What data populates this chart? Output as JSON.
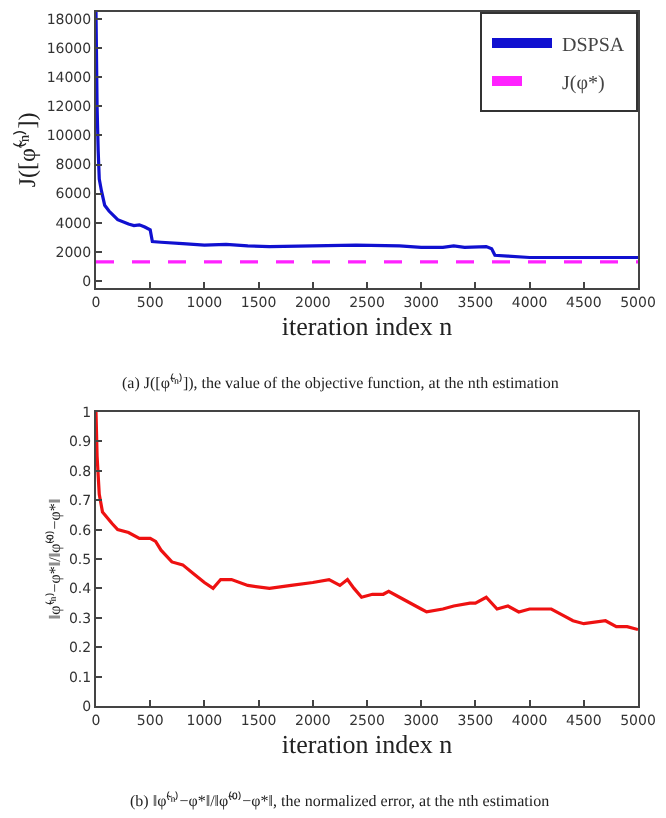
{
  "chart_data": [
    {
      "type": "line",
      "xlabel": "iteration index n",
      "ylabel": "J([φ̃⁽ⁿ⁾])",
      "annotations": [
        "(a) J([φ̃⁽ⁿ⁾]), the value of the objective function, at the nth estimation"
      ],
      "xlim": [
        0,
        5000
      ],
      "xticks": [
        0,
        500,
        1000,
        1500,
        2000,
        2500,
        3000,
        3500,
        4000,
        4500,
        5000
      ],
      "ylim": [
        -500,
        18500
      ],
      "yticks": [
        0,
        2000,
        4000,
        6000,
        8000,
        10000,
        12000,
        14000,
        16000,
        18000
      ],
      "legend": "top right",
      "series": [
        {
          "name": "DSPSA",
          "color": "#1010d0",
          "line_style": "solid",
          "x": [
            0,
            10,
            20,
            30,
            50,
            80,
            120,
            200,
            300,
            350,
            400,
            450,
            500,
            520,
            600,
            800,
            1000,
            1200,
            1400,
            1600,
            2000,
            2400,
            2800,
            3000,
            3200,
            3300,
            3400,
            3600,
            3650,
            3680,
            3800,
            4000,
            4500,
            5000
          ],
          "values": [
            18500,
            12000,
            9000,
            7000,
            6200,
            5200,
            4800,
            4200,
            3900,
            3800,
            3850,
            3700,
            3500,
            2700,
            2650,
            2550,
            2450,
            2500,
            2400,
            2350,
            2400,
            2450,
            2400,
            2300,
            2300,
            2400,
            2300,
            2350,
            2200,
            1750,
            1700,
            1600,
            1600,
            1600
          ]
        },
        {
          "name": "J(φ*)",
          "color": "#ff22ff",
          "line_style": "dashed",
          "x": [
            0,
            5000
          ],
          "values": [
            1300,
            1300
          ]
        }
      ]
    },
    {
      "type": "line",
      "xlabel": "iteration index n",
      "ylabel": "‖φ̃⁽ⁿ⁾−φ*‖/‖φ̃⁽⁰⁾−φ*‖",
      "annotations": [
        "(b) ‖φ̃⁽ⁿ⁾−φ*‖/‖φ̃⁽⁰⁾−φ*‖, the normalized error, at the nth estimation"
      ],
      "xlim": [
        0,
        5000
      ],
      "xticks": [
        0,
        500,
        1000,
        1500,
        2000,
        2500,
        3000,
        3500,
        4000,
        4500,
        5000
      ],
      "ylim": [
        0,
        1
      ],
      "yticks": [
        0,
        0.1,
        0.2,
        0.3,
        0.4,
        0.5,
        0.6,
        0.7,
        0.8,
        0.9,
        1
      ],
      "series": [
        {
          "color": "#ee1111",
          "line_style": "solid",
          "x": [
            0,
            10,
            30,
            60,
            150,
            200,
            300,
            400,
            500,
            550,
            600,
            700,
            800,
            900,
            1000,
            1080,
            1150,
            1250,
            1400,
            1600,
            1800,
            2000,
            2150,
            2250,
            2320,
            2380,
            2450,
            2550,
            2650,
            2700,
            2800,
            3000,
            3050,
            3200,
            3300,
            3450,
            3500,
            3600,
            3700,
            3800,
            3900,
            4000,
            4200,
            4300,
            4400,
            4500,
            4700,
            4800,
            4900,
            5000
          ],
          "values": [
            1.0,
            0.85,
            0.72,
            0.66,
            0.62,
            0.6,
            0.59,
            0.57,
            0.57,
            0.56,
            0.53,
            0.49,
            0.48,
            0.45,
            0.42,
            0.4,
            0.43,
            0.43,
            0.41,
            0.4,
            0.41,
            0.42,
            0.43,
            0.41,
            0.43,
            0.4,
            0.37,
            0.38,
            0.38,
            0.39,
            0.37,
            0.33,
            0.32,
            0.33,
            0.34,
            0.35,
            0.35,
            0.37,
            0.33,
            0.34,
            0.32,
            0.33,
            0.33,
            0.31,
            0.29,
            0.28,
            0.29,
            0.27,
            0.27,
            0.26
          ]
        }
      ]
    }
  ]
}
